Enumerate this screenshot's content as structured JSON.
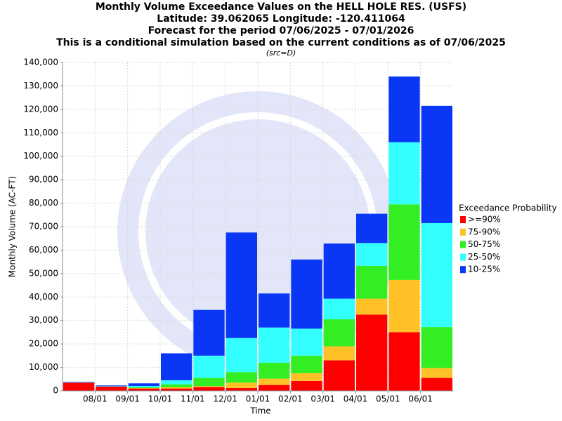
{
  "chart_data": {
    "type": "stacked-bar",
    "title": [
      "Monthly Volume Exceedance Values on the HELL HOLE RES. (USFS)",
      "Latitude: 39.062065 Longitude: -120.411064",
      "Forecast for the period 07/06/2025 - 07/01/2026",
      "This is a conditional simulation based on the current conditions as of 07/06/2025"
    ],
    "subtitle": "(src=D)",
    "x_label": "Time",
    "y_label": "Monthly Volume (AC-FT)",
    "categories": [
      null,
      "08/01",
      "09/01",
      "10/01",
      "11/01",
      "12/01",
      "01/01",
      "02/01",
      "03/01",
      "04/01",
      "05/01",
      "06/01"
    ],
    "series": [
      {
        "name": ">=90%",
        "color": "#ff0000",
        "values": [
          3500,
          1800,
          1000,
          1000,
          1600,
          1200,
          2500,
          4200,
          13000,
          32500,
          25000,
          5500
        ]
      },
      {
        "name": "75-90%",
        "color": "#ffc125",
        "values": [
          0,
          0,
          200,
          500,
          400,
          2300,
          2700,
          3300,
          6000,
          6800,
          22300,
          4200
        ]
      },
      {
        "name": "50-75%",
        "color": "#33ee22",
        "values": [
          0,
          0,
          300,
          1300,
          3500,
          4500,
          6800,
          7500,
          11500,
          14000,
          32200,
          17500
        ]
      },
      {
        "name": "25-50%",
        "color": "#33ffff",
        "values": [
          100,
          200,
          600,
          1700,
          9500,
          14500,
          15000,
          11500,
          8800,
          9700,
          26500,
          44300
        ]
      },
      {
        "name": "10-25%",
        "color": "#0a37f5",
        "values": [
          200,
          300,
          1100,
          11500,
          19500,
          45000,
          14500,
          29500,
          23500,
          12500,
          28000,
          50000
        ]
      }
    ],
    "legend_title": "Exceedance Probability",
    "legend_position": "right",
    "ylim": [
      0,
      140000
    ],
    "yticks": [
      0,
      {
        "value": 10000,
        "label": "10,000"
      },
      {
        "value": 20000,
        "label": "20,000"
      },
      {
        "value": 30000,
        "label": "30,000"
      },
      {
        "value": 40000,
        "label": "40,000"
      },
      {
        "value": 50000,
        "label": "50,000"
      },
      {
        "value": 60000,
        "label": "60,000"
      },
      {
        "value": 70000,
        "label": "70,000"
      },
      {
        "value": 80000,
        "label": "80,000"
      },
      {
        "value": 90000,
        "label": "90,000"
      },
      {
        "value": 100000,
        "label": "100,000"
      },
      {
        "value": 110000,
        "label": "110,000"
      },
      {
        "value": 120000,
        "label": "120,000"
      },
      {
        "value": 130000,
        "label": "130,000"
      },
      {
        "value": 140000,
        "label": "140,000"
      }
    ],
    "grid": true
  }
}
